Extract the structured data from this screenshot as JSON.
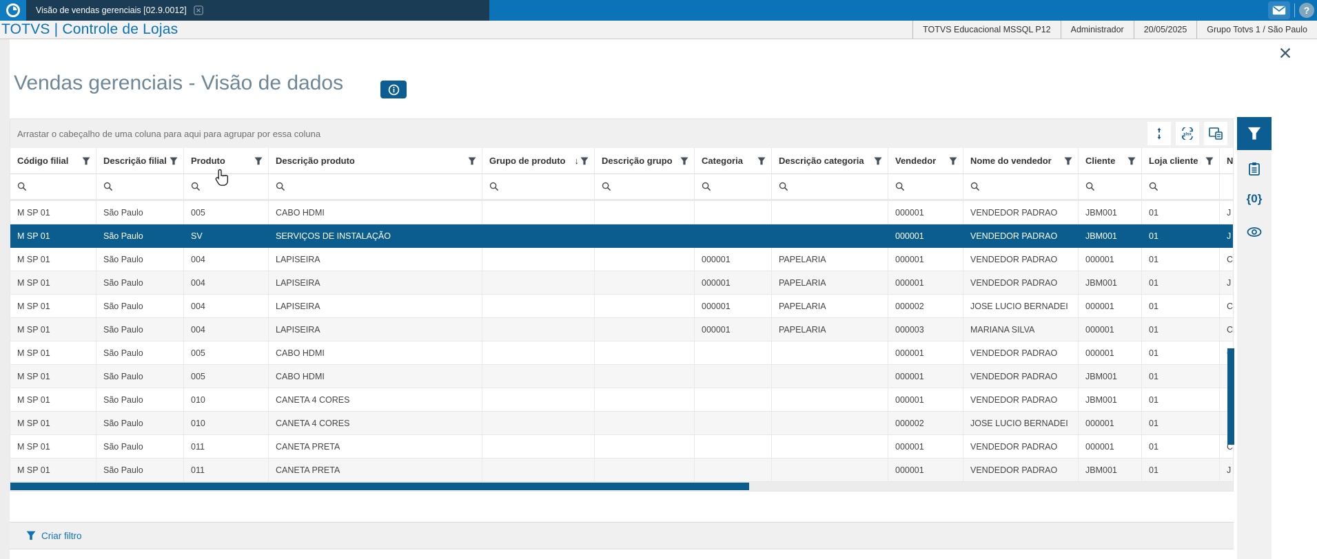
{
  "colors": {
    "topbar_blue": "#0d73b9",
    "tab_navy": "#1b3c55",
    "accent_dark_blue": "#0c5d91",
    "selected_row": "#0b5d8e",
    "brand_blue": "#0d72b8",
    "title_gray": "#6d8798"
  },
  "top_bar": {
    "tab_title": "Visão de vendas gerenciais [02.9.0012]",
    "mail_icon": "envelope-icon",
    "help_icon": "question-circle-icon"
  },
  "app_header": {
    "brand": "TOTVS | Controle de Lojas",
    "environment": "TOTVS Educacional MSSQL P12",
    "user": "Administrador",
    "date": "20/05/2025",
    "group_branch": "Grupo Totvs 1 / São Paulo"
  },
  "page": {
    "title": "Vendas gerenciais - Visão de dados"
  },
  "grid": {
    "group_hint": "Arrastar o cabeçalho de uma coluna para aqui para agrupar por essa coluna",
    "toolbar": [
      "fit-columns-icon",
      "export-xlsx-icon",
      "choose-columns-icon"
    ],
    "columns": [
      {
        "label": "Código filial",
        "filter": true
      },
      {
        "label": "Descrição filial",
        "filter": true
      },
      {
        "label": "Produto",
        "filter": true
      },
      {
        "label": "Descrição produto",
        "filter": true
      },
      {
        "label": "Grupo de produto",
        "filter": true,
        "sort": "desc"
      },
      {
        "label": "Descrição grupo",
        "filter": true
      },
      {
        "label": "Categoria",
        "filter": true
      },
      {
        "label": "Descrição categoria",
        "filter": true
      },
      {
        "label": "Vendedor",
        "filter": true
      },
      {
        "label": "Nome do vendedor",
        "filter": true
      },
      {
        "label": "Cliente",
        "filter": true
      },
      {
        "label": "Loja cliente",
        "filter": true
      },
      {
        "label": "N",
        "filter": false
      }
    ],
    "rows": [
      {
        "selected": false,
        "cells": [
          "M SP 01",
          "São Paulo",
          "005",
          "CABO HDMI",
          "",
          "",
          "",
          "",
          "000001",
          "VENDEDOR PADRAO",
          "JBM001",
          "01",
          "J"
        ]
      },
      {
        "selected": true,
        "cells": [
          "M SP 01",
          "São Paulo",
          "SV",
          "SERVIÇOS DE INSTALAÇÃO",
          "",
          "",
          "",
          "",
          "000001",
          "VENDEDOR PADRAO",
          "JBM001",
          "01",
          "J"
        ]
      },
      {
        "selected": false,
        "cells": [
          "M SP 01",
          "São Paulo",
          "004",
          "LAPISEIRA",
          "",
          "",
          "000001",
          "PAPELARIA",
          "000001",
          "VENDEDOR PADRAO",
          "000001",
          "01",
          "C"
        ]
      },
      {
        "selected": false,
        "cells": [
          "M SP 01",
          "São Paulo",
          "004",
          "LAPISEIRA",
          "",
          "",
          "000001",
          "PAPELARIA",
          "000001",
          "VENDEDOR PADRAO",
          "JBM001",
          "01",
          "J"
        ]
      },
      {
        "selected": false,
        "cells": [
          "M SP 01",
          "São Paulo",
          "004",
          "LAPISEIRA",
          "",
          "",
          "000001",
          "PAPELARIA",
          "000002",
          "JOSE LUCIO BERNADEI",
          "000001",
          "01",
          "C"
        ]
      },
      {
        "selected": false,
        "cells": [
          "M SP 01",
          "São Paulo",
          "004",
          "LAPISEIRA",
          "",
          "",
          "000001",
          "PAPELARIA",
          "000003",
          "MARIANA SILVA",
          "000001",
          "01",
          "C"
        ]
      },
      {
        "selected": false,
        "cells": [
          "M SP 01",
          "São Paulo",
          "005",
          "CABO HDMI",
          "",
          "",
          "",
          "",
          "000001",
          "VENDEDOR PADRAO",
          "000001",
          "01",
          "C"
        ]
      },
      {
        "selected": false,
        "cells": [
          "M SP 01",
          "São Paulo",
          "005",
          "CABO HDMI",
          "",
          "",
          "",
          "",
          "000001",
          "VENDEDOR PADRAO",
          "JBM001",
          "01",
          ""
        ]
      },
      {
        "selected": false,
        "cells": [
          "M SP 01",
          "São Paulo",
          "010",
          "CANETA 4 CORES",
          "",
          "",
          "",
          "",
          "000001",
          "VENDEDOR PADRAO",
          "JBM001",
          "01",
          ""
        ]
      },
      {
        "selected": false,
        "cells": [
          "M SP 01",
          "São Paulo",
          "010",
          "CANETA 4 CORES",
          "",
          "",
          "",
          "",
          "000002",
          "JOSE LUCIO BERNADEI",
          "000001",
          "01",
          ""
        ]
      },
      {
        "selected": false,
        "cells": [
          "M SP 01",
          "São Paulo",
          "011",
          "CANETA PRETA",
          "",
          "",
          "",
          "",
          "000001",
          "VENDEDOR PADRAO",
          "000001",
          "01",
          "C"
        ]
      },
      {
        "selected": false,
        "cells": [
          "M SP 01",
          "São Paulo",
          "011",
          "CANETA PRETA",
          "",
          "",
          "",
          "",
          "000001",
          "VENDEDOR PADRAO",
          "JBM001",
          "01",
          "J"
        ]
      }
    ],
    "footer_action": "Criar filtro"
  },
  "sidebar": {
    "tabs": [
      "filter-icon",
      "clipboard-icon",
      "braces-zero-icon",
      "eye-icon"
    ],
    "braces_label": "{0}"
  }
}
